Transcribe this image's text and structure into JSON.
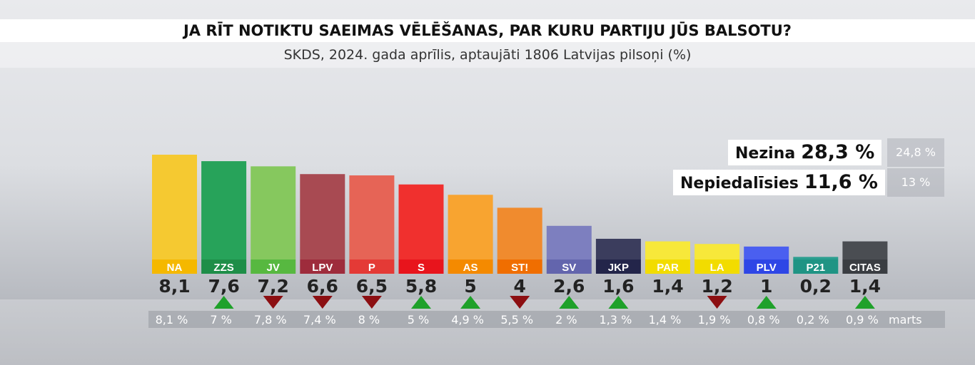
{
  "header": {
    "title": "JA RĪT NOTIKTU SAEIMAS VĒLĒŠANAS, PAR KURU PARTIJU JŪS BALSOTU?",
    "subtitle": "SKDS, 2024. gada aprīlis, aptaujāti 1806 Latvijas pilsoņi (%)"
  },
  "extra": {
    "undecided_label": "Nezina",
    "undecided_value": "28,3 %",
    "undecided_prev": "24,8 %",
    "nonvoting_label": "Nepiedalīsies",
    "nonvoting_value": "11,6 %",
    "nonvoting_prev": "13 %",
    "prev_label": "marts"
  },
  "colors": {
    "up": "#1fa12a",
    "down": "#8c0f12"
  },
  "chart_data": {
    "type": "bar",
    "title": "JA RĪT NOTIKTU SAEIMAS VĒLĒŠANAS, PAR KURU PARTIJU JŪS BALSOTU?",
    "subtitle": "SKDS, 2024. gada aprīlis, aptaujāti 1806 Latvijas pilsoņi (%)",
    "categories": [
      "NA",
      "ZZS",
      "JV",
      "LPV",
      "P",
      "S",
      "AS",
      "ST!",
      "SV",
      "JKP",
      "PAR",
      "LA",
      "PLV",
      "P21",
      "CITAS"
    ],
    "values": [
      8.1,
      7.6,
      7.2,
      6.6,
      6.5,
      5.8,
      5,
      4,
      2.6,
      1.6,
      1.4,
      1.2,
      1,
      0.2,
      1.4
    ],
    "value_labels": [
      "8,1",
      "7,6",
      "7,2",
      "6,6",
      "6,5",
      "5,8",
      "5",
      "4",
      "2,6",
      "1,6",
      "1,4",
      "1,2",
      "1",
      "0,2",
      "1,4"
    ],
    "previous_labels": [
      "8,1 %",
      "7 %",
      "7,8 %",
      "7,4 %",
      "8 %",
      "5 %",
      "4,9 %",
      "5,5 %",
      "2 %",
      "1,3 %",
      "1,4 %",
      "1,9 %",
      "0,8 %",
      "0,2 %",
      "0,9 %"
    ],
    "trend": [
      "none",
      "up",
      "down",
      "down",
      "down",
      "up",
      "up",
      "down",
      "up",
      "up",
      "none",
      "down",
      "up",
      "none",
      "up"
    ],
    "colors": [
      "#f5c931",
      "#27a35a",
      "#86c85e",
      "#a84a52",
      "#e66456",
      "#f0302e",
      "#f8a430",
      "#f08b2e",
      "#7d7fbf",
      "#3b3d5d",
      "#f7e83a",
      "#f7e83a",
      "#4a5ff0",
      "#2b9e8f",
      "#4a4d52"
    ],
    "label_colors": [
      "#f5b800",
      "#1e8e48",
      "#57b840",
      "#9e2c3c",
      "#e43a36",
      "#e8141c",
      "#f48a00",
      "#f06e00",
      "#6365ad",
      "#23254a",
      "#f2dc00",
      "#f2dc00",
      "#2e46e6",
      "#1f9484",
      "#3a3d42"
    ],
    "label_text_colors": [
      "#ffffff",
      "#ffffff",
      "#ffffff",
      "#ffffff",
      "#ffffff",
      "#ffffff",
      "#ffffff",
      "#ffffff",
      "#ffffff",
      "#ffffff",
      "#ffffff",
      "#ffffff",
      "#ffffff",
      "#ffffff",
      "#ffffff"
    ],
    "previous_period": "marts",
    "ylim": [
      0,
      8.5
    ],
    "legend": "none",
    "grid": false
  }
}
